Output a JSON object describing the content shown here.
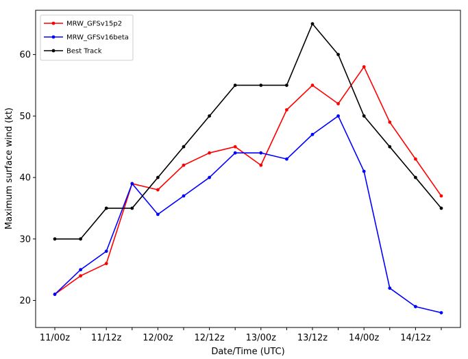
{
  "chart_data": {
    "type": "line",
    "xlabel": "Date/Time (UTC)",
    "ylabel": "Maximum surface wind (kt)",
    "x": [
      "11/00z",
      "11/06z",
      "11/12z",
      "11/18z",
      "12/00z",
      "12/06z",
      "12/12z",
      "12/18z",
      "13/00z",
      "13/06z",
      "13/12z",
      "13/18z",
      "14/00z",
      "14/06z",
      "14/12z",
      "14/18z"
    ],
    "x_tick_labels": [
      "11/00z",
      "",
      "11/12z",
      "",
      "12/00z",
      "",
      "12/12z",
      "",
      "13/00z",
      "",
      "13/12z",
      "",
      "14/00z",
      "",
      "14/12z",
      ""
    ],
    "ylim": [
      15.6,
      67.2
    ],
    "yticks": [
      20,
      30,
      40,
      50,
      60
    ],
    "grid": false,
    "legend_position": "top-left",
    "series": [
      {
        "name": "MRW_GFSv15p2",
        "color": "#ff0000",
        "values": [
          21,
          24,
          26,
          39,
          38,
          42,
          44,
          45,
          42,
          51,
          55,
          52,
          58,
          49,
          43,
          37
        ]
      },
      {
        "name": "MRW_GFSv16beta",
        "color": "#0000ff",
        "values": [
          21,
          25,
          28,
          39,
          34,
          37,
          40,
          44,
          44,
          43,
          47,
          50,
          41,
          22,
          19,
          18
        ]
      },
      {
        "name": "Best Track",
        "color": "#000000",
        "values": [
          30,
          30,
          35,
          35,
          40,
          45,
          50,
          55,
          55,
          55,
          65,
          60,
          50,
          45,
          40,
          35
        ]
      }
    ]
  }
}
